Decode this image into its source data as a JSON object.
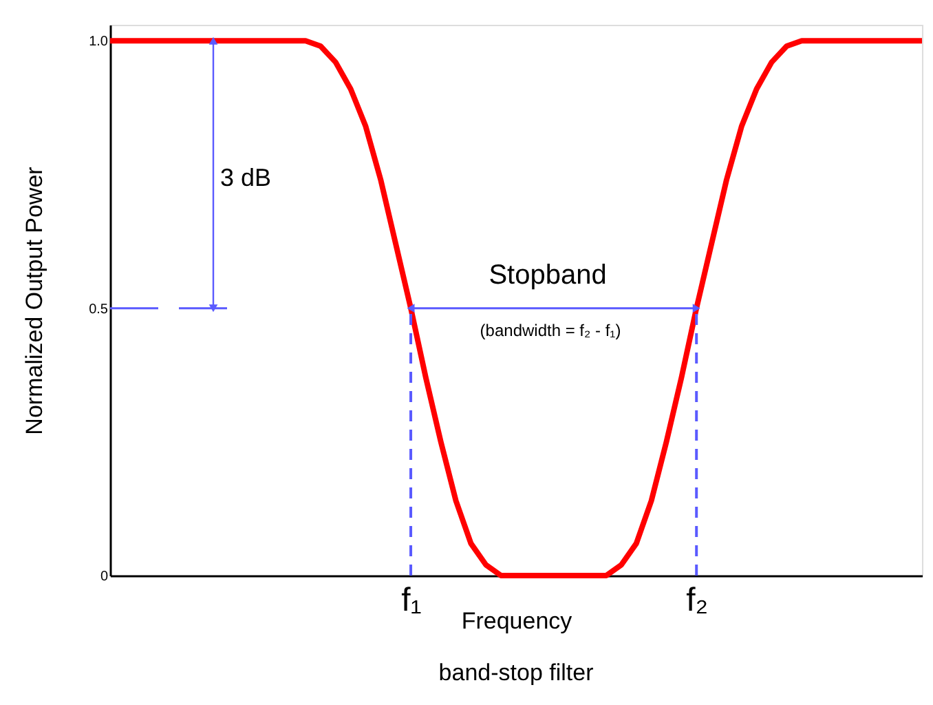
{
  "chart_data": {
    "type": "line",
    "title": "band-stop filter",
    "xlabel": "Frequency",
    "ylabel": "Normalized Output Power",
    "categories": [
      null,
      null,
      null,
      null,
      null,
      null,
      null,
      null,
      null,
      null,
      null,
      null,
      null,
      null,
      null,
      null,
      null,
      null,
      null,
      null,
      "f₁",
      null,
      null,
      null,
      null,
      null,
      null,
      null,
      null,
      null,
      null,
      null,
      null,
      null,
      null,
      null,
      null,
      null,
      null,
      "f₂",
      null,
      null,
      null,
      null,
      null,
      null,
      null,
      null,
      null,
      null,
      null,
      null,
      null,
      null,
      null
    ],
    "series": [
      {
        "color": "#ff0000",
        "values": [
          1,
          1,
          1,
          1,
          1,
          1,
          1,
          1,
          1,
          1,
          1,
          1,
          1,
          1,
          0.99,
          0.96,
          0.91,
          0.84,
          0.74,
          0.62,
          0.5,
          0.37,
          0.25,
          0.14,
          0.06,
          0.02,
          0,
          0,
          0,
          0,
          0,
          0,
          0,
          0,
          0.02,
          0.06,
          0.14,
          0.25,
          0.37,
          0.5,
          0.62,
          0.74,
          0.84,
          0.91,
          0.96,
          0.99,
          1,
          1,
          1,
          1,
          1,
          1,
          1,
          1,
          1
        ]
      }
    ],
    "ylim": [
      0,
      1.03
    ],
    "yticks": [
      0,
      0.5,
      {
        "value": 1,
        "label": "1.0"
      }
    ],
    "ref_lines": [
      {
        "axis": "x",
        "value": "f₁",
        "color": "#5a5aff",
        "line_style": "dashed"
      },
      {
        "axis": "x",
        "value": "f₂",
        "color": "#5a5aff",
        "line_style": "dashed"
      },
      {
        "axis": "y",
        "value": 0.5,
        "color": "#5a5aff",
        "line_style": "dashed"
      },
      {
        "axis": "y",
        "value": 0.5,
        "color": "#5a5aff",
        "line_style": "solid"
      }
    ],
    "annotations": [
      "3 dB",
      "Stopband",
      "(bandwidth = f₂ - f₁)"
    ],
    "grid": false,
    "marker": "none",
    "line_style": "solid"
  }
}
